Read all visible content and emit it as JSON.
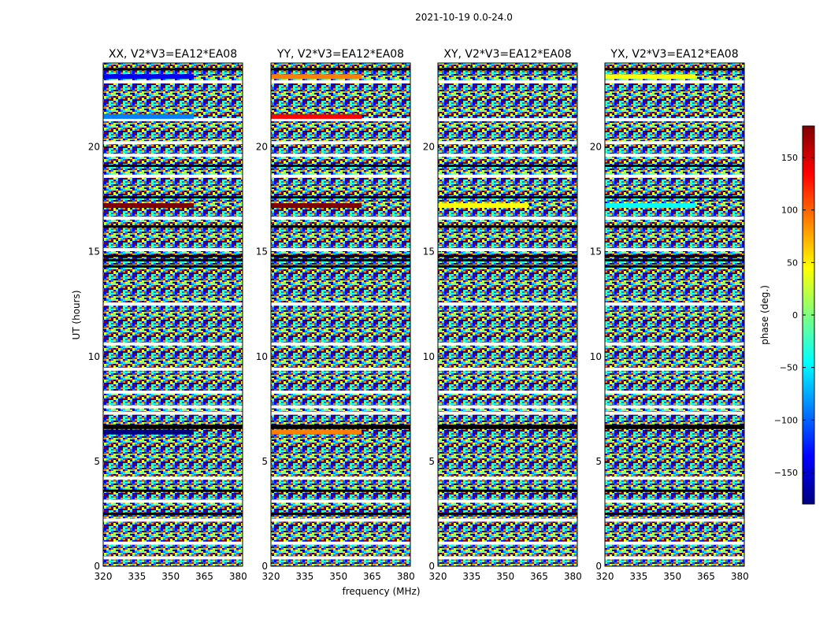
{
  "figure_title": "2021-10-19 0.0-24.0",
  "chart_data": {
    "type": "heatmap",
    "title": "2021-10-19 0.0-24.0",
    "xlabel": "frequency (MHz)",
    "ylabel": "UT (hours)",
    "xlim": [
      320,
      382
    ],
    "ylim": [
      0,
      24
    ],
    "x_ticks": [
      320,
      335,
      350,
      365,
      380
    ],
    "y_ticks": [
      0,
      5,
      10,
      15,
      20
    ],
    "colorbar": {
      "label": "phase (deg.)",
      "range": [
        -180,
        180
      ],
      "ticks": [
        -150,
        -100,
        -50,
        0,
        50,
        100,
        150
      ],
      "tick_labels": [
        "−150",
        "−100",
        "−50",
        "0",
        "50",
        "100",
        "150"
      ],
      "colors": [
        "#00007f",
        "#0000ff",
        "#007fff",
        "#00ffff",
        "#7fff7f",
        "#ffff00",
        "#ff7f00",
        "#ff0000",
        "#7f0000"
      ]
    },
    "panels": [
      {
        "title": "XX, V2*V3=EA12*EA08"
      },
      {
        "title": "YY, V2*V3=EA12*EA08"
      },
      {
        "title": "XY, V2*V3=EA12*EA08"
      },
      {
        "title": "YX, V2*V3=EA12*EA08"
      }
    ],
    "flagged_hours": [
      23.1,
      21.3,
      20.2,
      19.6,
      18.6,
      16.6,
      15.1,
      12.5,
      10.6,
      9.4,
      8.3,
      7.6,
      7.3,
      4.2,
      3.1,
      2.2,
      1.1,
      0.4
    ],
    "dark_hours": [
      23.7,
      19.1,
      17.6,
      16.2,
      14.8,
      14.6,
      14.3,
      6.7,
      6.6,
      3.6,
      2.5
    ],
    "coherent_hours": [
      {
        "y": 23.35,
        "phase_per_panel": [
          -130,
          80,
          null,
          60
        ]
      },
      {
        "y": 21.45,
        "phase_per_panel": [
          -110,
          150,
          null,
          null
        ]
      },
      {
        "y": 17.2,
        "phase_per_panel": [
          170,
          160,
          30,
          -30
        ]
      },
      {
        "y": 6.4,
        "phase_per_panel": [
          -160,
          100,
          null,
          null
        ]
      }
    ]
  }
}
